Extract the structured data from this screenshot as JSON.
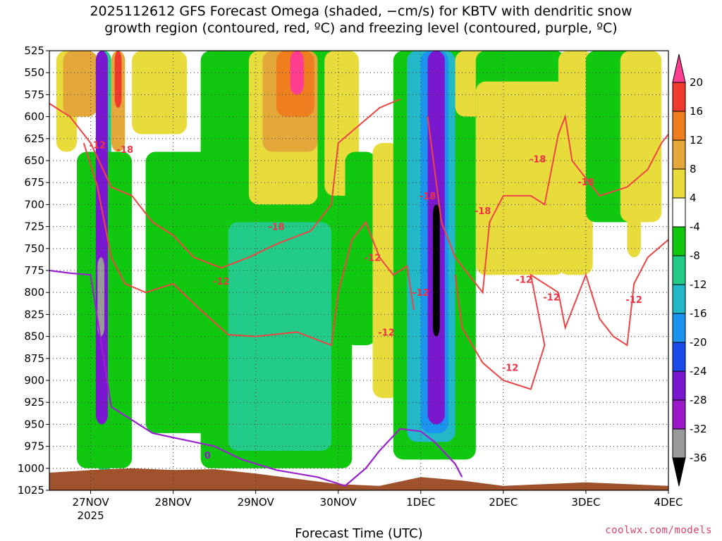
{
  "chart_data": {
    "type": "heatmap",
    "title_line1": "2025112612 GFS Forecast Omega (shaded, −cm/s) for KBTV with dendritic snow",
    "title_line2": "growth region (contoured, red, ºC) and freezing level (contoured, purple, ºC)",
    "xlabel": "Forecast Time (UTC)",
    "x_ticks": [
      {
        "label": "27NOV",
        "sub": "2025",
        "hour": 12
      },
      {
        "label": "28NOV",
        "sub": "",
        "hour": 36
      },
      {
        "label": "29NOV",
        "sub": "",
        "hour": 60
      },
      {
        "label": "30NOV",
        "sub": "",
        "hour": 84
      },
      {
        "label": "1DEC",
        "sub": "",
        "hour": 108
      },
      {
        "label": "2DEC",
        "sub": "",
        "hour": 132
      },
      {
        "label": "3DEC",
        "sub": "",
        "hour": 156
      },
      {
        "label": "4DEC",
        "sub": "",
        "hour": 180
      }
    ],
    "x_range_hours": [
      0,
      180
    ],
    "y_levels_hpa": [
      "525",
      "550",
      "575",
      "600",
      "625",
      "650",
      "675",
      "700",
      "725",
      "750",
      "775",
      "800",
      "825",
      "850",
      "875",
      "900",
      "925",
      "950",
      "975",
      "1000",
      "1025"
    ],
    "y_range_hpa": [
      525,
      1025
    ],
    "grid": "dotted",
    "colorbar": {
      "levels": [
        "20",
        "16",
        "12",
        "8",
        "4",
        "-4",
        "-8",
        "-12",
        "-16",
        "-20",
        "-24",
        "-28",
        "-32",
        "-36"
      ],
      "colors": [
        "#ff3e8f",
        "#f03a2e",
        "#ef7e1e",
        "#e3a73a",
        "#e8dc3d",
        "#ffffff",
        "#10c810",
        "#22cc88",
        "#22b8c8",
        "#1a94f0",
        "#1a4ae8",
        "#7a18d0",
        "#9a9a9a",
        "#000000"
      ]
    },
    "contour_labels_red": [
      "-12",
      "-18",
      "-18",
      "-12",
      "-18",
      "-12",
      "-12",
      "-18",
      "-12",
      "-18",
      "-12",
      "-12",
      "-18",
      "-12",
      "-12"
    ],
    "contour_labels_purple": [
      "0"
    ],
    "shading_blobs": [
      {
        "t0": 2,
        "t1": 8,
        "p0": 525,
        "p1": 640,
        "val": 4
      },
      {
        "t0": 4,
        "t1": 14,
        "p0": 525,
        "p1": 600,
        "val": 8
      },
      {
        "t0": 14,
        "t1": 18,
        "p0": 525,
        "p1": 1005,
        "val": -12
      },
      {
        "t0": 8,
        "t1": 24,
        "p0": 640,
        "p1": 1000,
        "val": -8
      },
      {
        "t0": 13.5,
        "t1": 17,
        "p0": 525,
        "p1": 950,
        "val": -28
      },
      {
        "t0": 14,
        "t1": 16,
        "p0": 760,
        "p1": 850,
        "val": -32
      },
      {
        "t0": 18,
        "t1": 22,
        "p0": 525,
        "p1": 640,
        "val": 8
      },
      {
        "t0": 19,
        "t1": 21,
        "p0": 525,
        "p1": 590,
        "val": 16
      },
      {
        "t0": 24,
        "t1": 40,
        "p0": 525,
        "p1": 620,
        "val": 4
      },
      {
        "t0": 28,
        "t1": 50,
        "p0": 640,
        "p1": 960,
        "val": -8
      },
      {
        "t0": 44,
        "t1": 88,
        "p0": 525,
        "p1": 1000,
        "val": -8
      },
      {
        "t0": 52,
        "t1": 82,
        "p0": 720,
        "p1": 980,
        "val": -12
      },
      {
        "t0": 58,
        "t1": 78,
        "p0": 525,
        "p1": 700,
        "val": 4
      },
      {
        "t0": 62,
        "t1": 78,
        "p0": 525,
        "p1": 640,
        "val": 8
      },
      {
        "t0": 66,
        "t1": 77,
        "p0": 525,
        "p1": 600,
        "val": 12
      },
      {
        "t0": 70,
        "t1": 74,
        "p0": 525,
        "p1": 575,
        "val": 20
      },
      {
        "t0": 80,
        "t1": 90,
        "p0": 525,
        "p1": 690,
        "val": 4
      },
      {
        "t0": 86,
        "t1": 95,
        "p0": 640,
        "p1": 860,
        "val": -8
      },
      {
        "t0": 94,
        "t1": 102,
        "p0": 630,
        "p1": 920,
        "val": 4
      },
      {
        "t0": 100,
        "t1": 124,
        "p0": 525,
        "p1": 990,
        "val": -8
      },
      {
        "t0": 104,
        "t1": 118,
        "p0": 525,
        "p1": 970,
        "val": -16
      },
      {
        "t0": 108,
        "t1": 116,
        "p0": 525,
        "p1": 960,
        "val": -20
      },
      {
        "t0": 110,
        "t1": 115,
        "p0": 525,
        "p1": 950,
        "val": -28
      },
      {
        "t0": 111.5,
        "t1": 113.5,
        "p0": 700,
        "p1": 850,
        "val": -36
      },
      {
        "t0": 118,
        "t1": 130,
        "p0": 525,
        "p1": 600,
        "val": 4
      },
      {
        "t0": 124,
        "t1": 150,
        "p0": 525,
        "p1": 720,
        "val": -8
      },
      {
        "t0": 124,
        "t1": 150,
        "p0": 560,
        "p1": 780,
        "val": 4
      },
      {
        "t0": 148,
        "t1": 158,
        "p0": 525,
        "p1": 780,
        "val": 4
      },
      {
        "t0": 156,
        "t1": 172,
        "p0": 525,
        "p1": 720,
        "val": -8
      },
      {
        "t0": 166,
        "t1": 178,
        "p0": 525,
        "p1": 720,
        "val": 4
      },
      {
        "t0": 168,
        "t1": 172,
        "p0": 700,
        "p1": 760,
        "val": 4
      }
    ]
  },
  "footer": "coolwx.com/models"
}
